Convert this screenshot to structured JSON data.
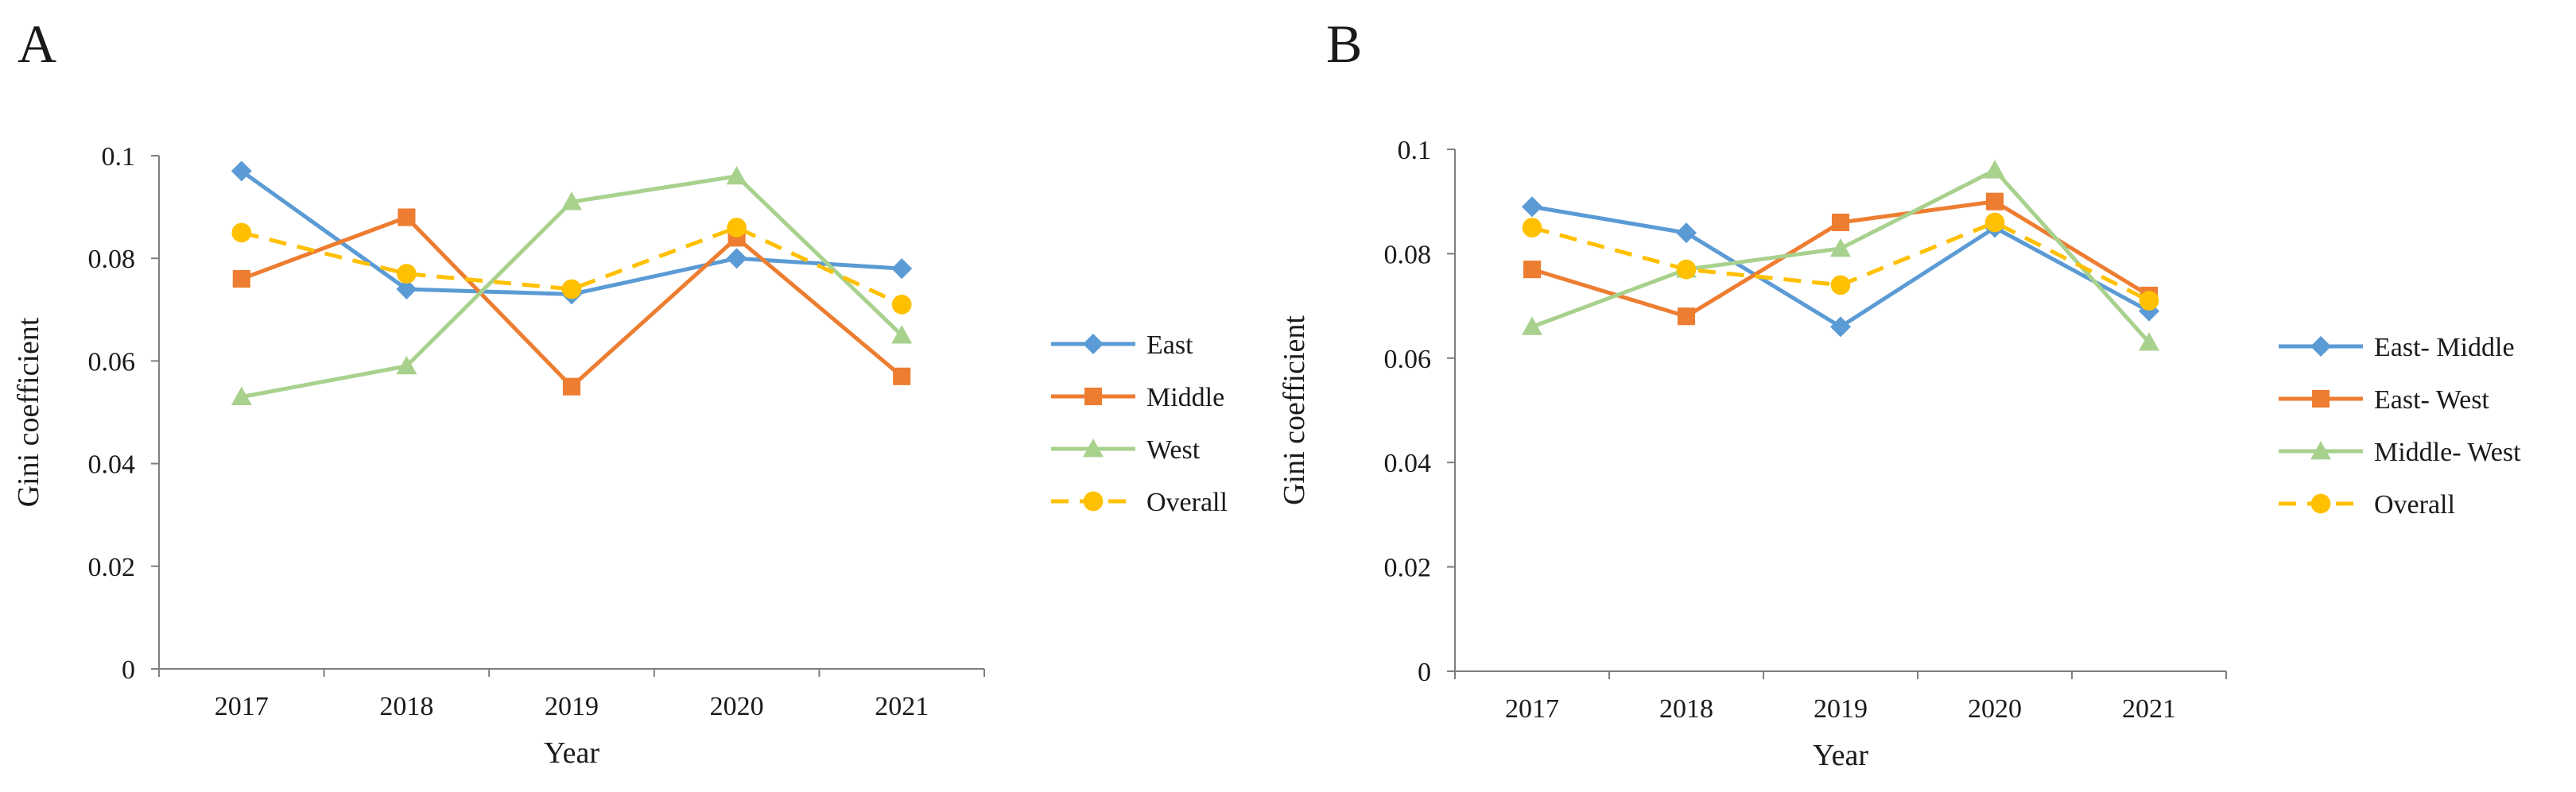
{
  "chart_data": [
    {
      "panel": "A",
      "type": "line",
      "xlabel": "Year",
      "ylabel": "Gini coefficient",
      "categories": [
        "2017",
        "2018",
        "2019",
        "2020",
        "2021"
      ],
      "ylim": [
        0,
        0.1
      ],
      "yticks": [
        "0",
        "0.02",
        "0.04",
        "0.06",
        "0.08",
        "0.1"
      ],
      "grid": false,
      "legend_position": "right",
      "series": [
        {
          "name": "East",
          "values": [
            0.097,
            0.074,
            0.073,
            0.08,
            0.078
          ],
          "color": "#5b9bd5",
          "marker": "diamond",
          "dash": "solid"
        },
        {
          "name": "Middle",
          "values": [
            0.076,
            0.088,
            0.055,
            0.084,
            0.057
          ],
          "color": "#ed7d31",
          "marker": "square",
          "dash": "solid"
        },
        {
          "name": "West",
          "values": [
            0.053,
            0.059,
            0.091,
            0.096,
            0.065
          ],
          "color": "#a9d18e",
          "marker": "triangle",
          "dash": "solid"
        },
        {
          "name": "Overall",
          "values": [
            0.085,
            0.077,
            0.074,
            0.086,
            0.071
          ],
          "color": "#ffc000",
          "marker": "circle",
          "dash": "dashed"
        }
      ]
    },
    {
      "panel": "B",
      "type": "line",
      "xlabel": "Year",
      "ylabel": "Gini coefficient",
      "categories": [
        "2017",
        "2018",
        "2019",
        "2020",
        "2021"
      ],
      "ylim": [
        0,
        0.1
      ],
      "yticks": [
        "0",
        "0.02",
        "0.04",
        "0.06",
        "0.08",
        "0.1"
      ],
      "grid": false,
      "legend_position": "right",
      "series": [
        {
          "name": "East- Middle",
          "values": [
            0.089,
            0.084,
            0.066,
            0.085,
            0.069
          ],
          "color": "#5b9bd5",
          "marker": "diamond",
          "dash": "solid"
        },
        {
          "name": "East- West",
          "values": [
            0.077,
            0.068,
            0.086,
            0.09,
            0.072
          ],
          "color": "#ed7d31",
          "marker": "square",
          "dash": "solid"
        },
        {
          "name": "Middle- West",
          "values": [
            0.066,
            0.077,
            0.081,
            0.096,
            0.063
          ],
          "color": "#a9d18e",
          "marker": "triangle",
          "dash": "solid"
        },
        {
          "name": "Overall",
          "values": [
            0.085,
            0.077,
            0.074,
            0.086,
            0.071
          ],
          "color": "#ffc000",
          "marker": "circle",
          "dash": "dashed"
        }
      ]
    }
  ]
}
